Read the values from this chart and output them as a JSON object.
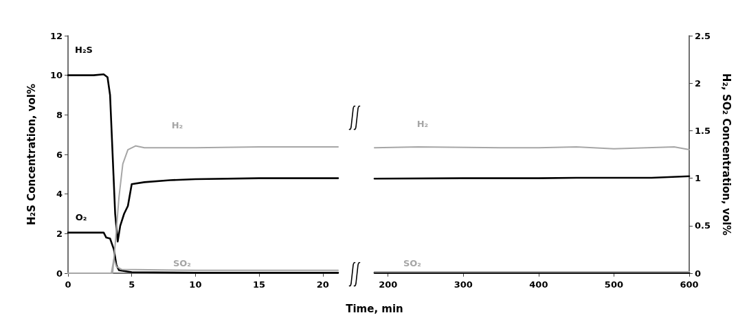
{
  "chart_data": [
    {
      "type": "line",
      "ylabel": "H₂S Concentration, vol%",
      "xlim": [
        0,
        21.2
      ],
      "xticks": [
        0,
        5,
        10,
        15,
        20
      ],
      "ylim": [
        0,
        12
      ],
      "yticks": [
        0,
        2,
        4,
        6,
        8,
        10,
        12
      ],
      "y2lim": [
        0,
        2.5
      ],
      "grid": false,
      "marker": "none",
      "line_style": "solid",
      "series": [
        {
          "name": "H₂S",
          "color": "#000000",
          "x": [
            0,
            1,
            2,
            2.8,
            3.1,
            3.3,
            3.5,
            3.7,
            3.9,
            4.1,
            4.4,
            4.7,
            5,
            6,
            8,
            10,
            15,
            21.2
          ],
          "values": [
            10,
            10,
            10,
            10.05,
            9.9,
            9,
            6,
            3,
            1.6,
            2.4,
            3,
            3.4,
            4.5,
            4.6,
            4.7,
            4.75,
            4.8,
            4.8
          ]
        },
        {
          "name": "O₂",
          "color": "#000000",
          "x": [
            0,
            2.8,
            3,
            3.3,
            3.6,
            3.8,
            4,
            5,
            10,
            21.2
          ],
          "values": [
            2.05,
            2.05,
            1.8,
            1.75,
            1.2,
            0.4,
            0.15,
            0.05,
            0.02,
            0.02
          ]
        },
        {
          "name": "H₂",
          "color": "#a6a6a6",
          "axis": "y2",
          "x": [
            0,
            3.5,
            3.7,
            4,
            4.3,
            4.7,
            5.3,
            6,
            8,
            10,
            15,
            21.2
          ],
          "values": [
            0,
            0,
            0.3,
            0.8,
            1.15,
            1.3,
            1.34,
            1.32,
            1.32,
            1.32,
            1.33,
            1.33
          ]
        },
        {
          "name": "SO₂",
          "color": "#a6a6a6",
          "axis": "y2",
          "x": [
            0,
            3.4,
            3.6,
            3.8,
            4.2,
            10,
            21.2
          ],
          "values": [
            0,
            0,
            0.15,
            0.07,
            0.04,
            0.03,
            0.03
          ]
        }
      ]
    },
    {
      "type": "line",
      "xlabel": "Time, min",
      "y2label": "H₂, SO₂ Concentration, vol%",
      "xlim": [
        182,
        600
      ],
      "xticks": [
        200,
        300,
        400,
        500,
        600
      ],
      "ylim": [
        0,
        12
      ],
      "y2lim": [
        0,
        2.5
      ],
      "y2ticks": [
        0,
        0.5,
        1,
        1.5,
        2,
        2.5
      ],
      "grid": false,
      "marker": "none",
      "line_style": "solid",
      "series": [
        {
          "color": "#000000",
          "x": [
            182,
            300,
            400,
            450,
            550,
            600
          ],
          "values": [
            4.78,
            4.8,
            4.8,
            4.82,
            4.82,
            4.9
          ]
        },
        {
          "color": "#000000",
          "x": [
            182,
            600
          ],
          "values": [
            0.02,
            0.02
          ]
        },
        {
          "name": "H₂",
          "color": "#a6a6a6",
          "axis": "y2",
          "x": [
            182,
            240,
            350,
            400,
            450,
            500,
            580,
            600
          ],
          "values": [
            1.32,
            1.33,
            1.32,
            1.32,
            1.33,
            1.31,
            1.33,
            1.3
          ]
        },
        {
          "name": "SO₂",
          "color": "#a6a6a6",
          "axis": "y2",
          "x": [
            182,
            600
          ],
          "values": [
            0.015,
            0.015
          ]
        }
      ]
    }
  ]
}
